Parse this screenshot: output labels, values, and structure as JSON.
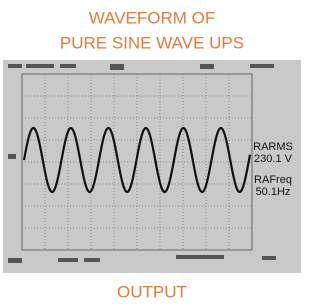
{
  "title": {
    "line1": "WAVEFORM OF",
    "line2": "PURE SINE WAVE UPS"
  },
  "readings": [
    {
      "label": "RARMS",
      "value": "230.1 V"
    },
    {
      "label": "RAFreq",
      "value": "50.1Hz"
    }
  ],
  "caption": "OUTPUT"
}
